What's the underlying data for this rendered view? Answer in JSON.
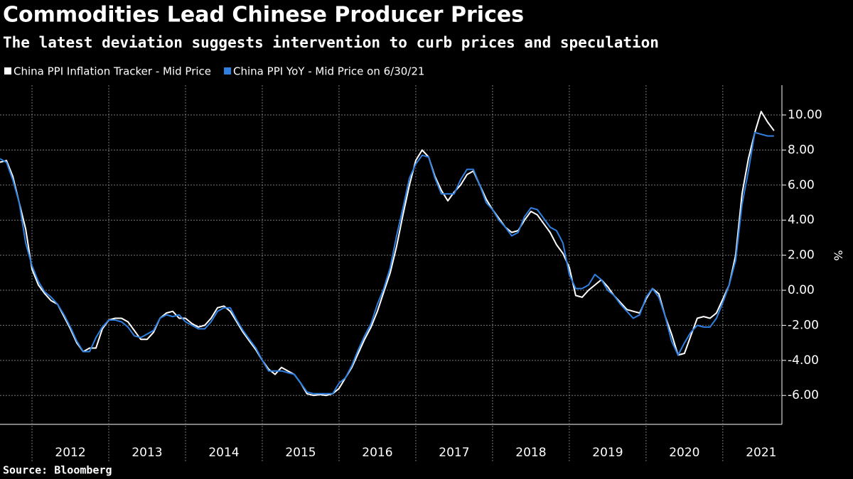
{
  "chart_data": {
    "type": "line",
    "title": "Commodities Lead Chinese Producer Prices",
    "subtitle": "The latest deviation suggests intervention to curb prices and speculation",
    "source": "Source: Bloomberg",
    "y_label": "%",
    "x": [
      2011.583,
      2011.667,
      2011.75,
      2011.833,
      2011.917,
      2012.0,
      2012.083,
      2012.167,
      2012.25,
      2012.333,
      2012.417,
      2012.5,
      2012.583,
      2012.667,
      2012.75,
      2012.833,
      2012.917,
      2013.0,
      2013.083,
      2013.167,
      2013.25,
      2013.333,
      2013.417,
      2013.5,
      2013.583,
      2013.667,
      2013.75,
      2013.833,
      2013.917,
      2014.0,
      2014.083,
      2014.167,
      2014.25,
      2014.333,
      2014.417,
      2014.5,
      2014.583,
      2014.667,
      2014.75,
      2014.833,
      2014.917,
      2015.0,
      2015.083,
      2015.167,
      2015.25,
      2015.333,
      2015.417,
      2015.5,
      2015.583,
      2015.667,
      2015.75,
      2015.833,
      2015.917,
      2016.0,
      2016.083,
      2016.167,
      2016.25,
      2016.333,
      2016.417,
      2016.5,
      2016.583,
      2016.667,
      2016.75,
      2016.833,
      2016.917,
      2017.0,
      2017.083,
      2017.167,
      2017.25,
      2017.333,
      2017.417,
      2017.5,
      2017.583,
      2017.667,
      2017.75,
      2017.833,
      2017.917,
      2018.0,
      2018.083,
      2018.167,
      2018.25,
      2018.333,
      2018.417,
      2018.5,
      2018.583,
      2018.667,
      2018.75,
      2018.833,
      2018.917,
      2019.0,
      2019.083,
      2019.167,
      2019.25,
      2019.333,
      2019.417,
      2019.5,
      2019.583,
      2019.667,
      2019.75,
      2019.833,
      2019.917,
      2020.0,
      2020.083,
      2020.167,
      2020.25,
      2020.333,
      2020.417,
      2020.5,
      2020.583,
      2020.667,
      2020.75,
      2020.833,
      2020.917,
      2021.0,
      2021.083,
      2021.167,
      2021.25,
      2021.333,
      2021.417,
      2021.5,
      2021.583,
      2021.667
    ],
    "series": [
      {
        "name": "China PPI Inflation Tracker - Mid Price",
        "color": "#ffffff",
        "values": [
          7.3,
          7.4,
          6.5,
          5.0,
          3.5,
          1.2,
          0.3,
          -0.2,
          -0.6,
          -0.8,
          -1.5,
          -2.2,
          -3.0,
          -3.5,
          -3.3,
          -3.3,
          -2.2,
          -1.7,
          -1.6,
          -1.6,
          -1.8,
          -2.3,
          -2.8,
          -2.8,
          -2.4,
          -1.6,
          -1.3,
          -1.2,
          -1.6,
          -1.6,
          -1.9,
          -2.1,
          -2.0,
          -1.6,
          -1.0,
          -0.9,
          -1.2,
          -1.8,
          -2.4,
          -2.9,
          -3.4,
          -4.0,
          -4.5,
          -4.8,
          -4.4,
          -4.6,
          -4.8,
          -5.3,
          -5.9,
          -6.0,
          -5.95,
          -6.0,
          -5.9,
          -5.6,
          -5.0,
          -4.4,
          -3.6,
          -2.8,
          -2.1,
          -1.2,
          -0.1,
          1.0,
          2.5,
          4.3,
          6.0,
          7.4,
          8.0,
          7.6,
          6.5,
          5.7,
          5.1,
          5.6,
          6.0,
          6.6,
          6.8,
          6.0,
          5.2,
          4.6,
          4.1,
          3.6,
          3.3,
          3.4,
          4.0,
          4.5,
          4.3,
          3.8,
          3.3,
          2.6,
          2.1,
          1.3,
          -0.3,
          -0.4,
          0.0,
          0.3,
          0.6,
          0.2,
          -0.3,
          -0.7,
          -1.1,
          -1.2,
          -1.3,
          -0.5,
          0.1,
          -0.2,
          -1.5,
          -2.5,
          -3.7,
          -3.6,
          -2.6,
          -1.6,
          -1.5,
          -1.6,
          -1.3,
          -0.5,
          0.3,
          2.0,
          5.5,
          7.5,
          9.0,
          10.2,
          9.6,
          9.1
        ]
      },
      {
        "name": "China PPI YoY - Mid Price on 6/30/21",
        "color": "#2f7fe0",
        "values": [
          7.5,
          7.3,
          6.3,
          5.0,
          2.7,
          1.4,
          0.5,
          -0.1,
          -0.4,
          -0.8,
          -1.4,
          -2.1,
          -2.9,
          -3.5,
          -3.5,
          -2.7,
          -2.1,
          -1.7,
          -1.7,
          -1.8,
          -2.1,
          -2.6,
          -2.7,
          -2.5,
          -2.3,
          -1.6,
          -1.4,
          -1.5,
          -1.4,
          -1.8,
          -2.0,
          -2.2,
          -2.2,
          -1.8,
          -1.2,
          -1.0,
          -1.0,
          -1.7,
          -2.3,
          -2.8,
          -3.3,
          -4.0,
          -4.6,
          -4.6,
          -4.6,
          -4.7,
          -4.8,
          -5.3,
          -5.8,
          -5.9,
          -5.9,
          -5.9,
          -5.9,
          -5.3,
          -5.0,
          -4.3,
          -3.4,
          -2.6,
          -1.9,
          -0.8,
          0.1,
          1.3,
          3.1,
          4.7,
          6.4,
          7.2,
          7.7,
          7.6,
          6.4,
          5.5,
          5.5,
          5.5,
          6.3,
          6.9,
          6.9,
          6.0,
          5.0,
          4.6,
          4.0,
          3.6,
          3.1,
          3.3,
          4.2,
          4.7,
          4.6,
          4.1,
          3.6,
          3.4,
          2.7,
          0.9,
          0.1,
          0.1,
          0.3,
          0.9,
          0.6,
          0.0,
          -0.3,
          -0.8,
          -1.2,
          -1.6,
          -1.4,
          -0.4,
          0.1,
          -0.4,
          -1.5,
          -2.9,
          -3.7,
          -3.0,
          -2.4,
          -2.0,
          -2.1,
          -2.1,
          -1.6,
          -0.7,
          0.3,
          1.7,
          4.9,
          6.8,
          9.0,
          8.9,
          8.8,
          8.8
        ]
      }
    ],
    "xlim": [
      2011.583,
      2021.77
    ],
    "xticks": [
      2012,
      2013,
      2014,
      2015,
      2016,
      2017,
      2018,
      2019,
      2020,
      2021
    ],
    "ylim": [
      -7.65,
      11.7
    ],
    "yticks": [
      {
        "value": 10,
        "label": "10.00"
      },
      {
        "value": 8,
        "label": "8.00"
      },
      {
        "value": 6,
        "label": "6.00"
      },
      {
        "value": 4,
        "label": "4.00"
      },
      {
        "value": 2,
        "label": "2.00"
      },
      {
        "value": 0,
        "label": "0.00"
      },
      {
        "value": -2,
        "label": "-2.00"
      },
      {
        "value": -4,
        "label": "-4.00"
      },
      {
        "value": -6,
        "label": "-6.00"
      }
    ],
    "grid": true
  }
}
